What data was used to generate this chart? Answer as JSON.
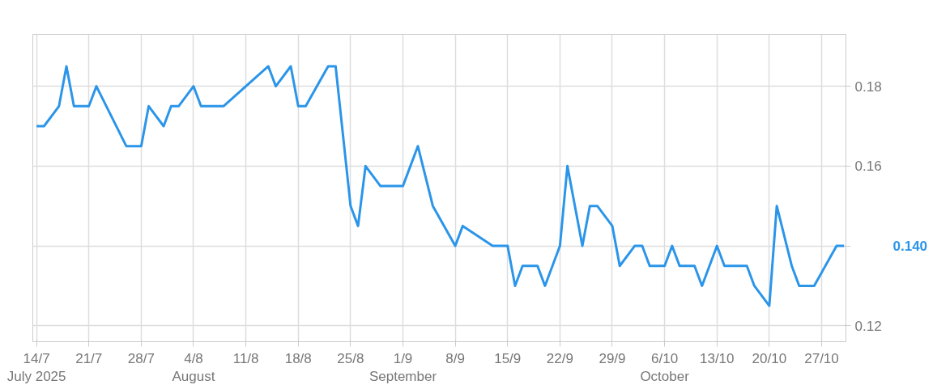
{
  "chart_data": {
    "type": "line",
    "x": [
      "2025-07-14",
      "2025-07-15",
      "2025-07-17",
      "2025-07-18",
      "2025-07-19",
      "2025-07-21",
      "2025-07-22",
      "2025-07-26",
      "2025-07-28",
      "2025-07-29",
      "2025-07-31",
      "2025-08-01",
      "2025-08-02",
      "2025-08-04",
      "2025-08-05",
      "2025-08-08",
      "2025-08-14",
      "2025-08-15",
      "2025-08-17",
      "2025-08-18",
      "2025-08-19",
      "2025-08-22",
      "2025-08-23",
      "2025-08-25",
      "2025-08-26",
      "2025-08-27",
      "2025-08-29",
      "2025-09-01",
      "2025-09-02",
      "2025-09-03",
      "2025-09-05",
      "2025-09-08",
      "2025-09-09",
      "2025-09-13",
      "2025-09-15",
      "2025-09-16",
      "2025-09-17",
      "2025-09-19",
      "2025-09-20",
      "2025-09-22",
      "2025-09-23",
      "2025-09-25",
      "2025-09-26",
      "2025-09-27",
      "2025-09-29",
      "2025-09-30",
      "2025-10-02",
      "2025-10-03",
      "2025-10-04",
      "2025-10-06",
      "2025-10-07",
      "2025-10-08",
      "2025-10-10",
      "2025-10-11",
      "2025-10-13",
      "2025-10-14",
      "2025-10-17",
      "2025-10-18",
      "2025-10-20",
      "2025-10-21",
      "2025-10-23",
      "2025-10-24",
      "2025-10-26",
      "2025-10-29",
      "2025-10-30"
    ],
    "series": [
      {
        "color": "#2b95e9",
        "values": [
          0.17,
          0.17,
          0.175,
          0.185,
          0.175,
          0.175,
          0.18,
          0.165,
          0.165,
          0.175,
          0.17,
          0.175,
          0.175,
          0.18,
          0.175,
          0.175,
          0.185,
          0.18,
          0.185,
          0.175,
          0.175,
          0.185,
          0.185,
          0.15,
          0.145,
          0.16,
          0.155,
          0.155,
          0.16,
          0.165,
          0.15,
          0.14,
          0.145,
          0.14,
          0.14,
          0.13,
          0.135,
          0.135,
          0.13,
          0.14,
          0.16,
          0.14,
          0.15,
          0.15,
          0.145,
          0.135,
          0.14,
          0.14,
          0.135,
          0.135,
          0.14,
          0.135,
          0.135,
          0.13,
          0.14,
          0.135,
          0.135,
          0.13,
          0.125,
          0.15,
          0.135,
          0.13,
          0.13,
          0.14,
          0.14
        ]
      }
    ],
    "xlim": [
      "2025-07-13T12:00",
      "2025-10-30T06:00"
    ],
    "xticks": [
      {
        "value": "2025-07-14",
        "label": "14/7\nJuly 2025"
      },
      {
        "value": "2025-07-21",
        "label": "21/7"
      },
      {
        "value": "2025-07-28",
        "label": "28/7"
      },
      {
        "value": "2025-08-04",
        "label": "4/8\nAugust"
      },
      {
        "value": "2025-08-11",
        "label": "11/8"
      },
      {
        "value": "2025-08-18",
        "label": "18/8"
      },
      {
        "value": "2025-08-25",
        "label": "25/8"
      },
      {
        "value": "2025-09-01",
        "label": "1/9\nSeptember"
      },
      {
        "value": "2025-09-08",
        "label": "8/9"
      },
      {
        "value": "2025-09-15",
        "label": "15/9"
      },
      {
        "value": "2025-09-22",
        "label": "22/9"
      },
      {
        "value": "2025-09-29",
        "label": "29/9"
      },
      {
        "value": "2025-10-06",
        "label": "6/10\nOctober"
      },
      {
        "value": "2025-10-13",
        "label": "13/10"
      },
      {
        "value": "2025-10-20",
        "label": "20/10"
      },
      {
        "value": "2025-10-27",
        "label": "27/10"
      }
    ],
    "ylim": [
      0.116,
      0.193
    ],
    "yticks": [
      0.12,
      {
        "value": 0.14,
        "label": null
      },
      0.16,
      0.18
    ],
    "value_labels": [
      null,
      null,
      null,
      null,
      null,
      null,
      null,
      null,
      null,
      null,
      null,
      null,
      null,
      null,
      null,
      null,
      null,
      null,
      null,
      null,
      null,
      null,
      null,
      null,
      null,
      null,
      null,
      null,
      null,
      null,
      null,
      null,
      null,
      null,
      null,
      null,
      null,
      null,
      null,
      null,
      null,
      null,
      null,
      null,
      null,
      null,
      null,
      null,
      null,
      null,
      null,
      null,
      null,
      null,
      null,
      null,
      null,
      null,
      null,
      null,
      null,
      null,
      null,
      null,
      "0.140"
    ],
    "grid": true,
    "marker": "none",
    "line_style": "solid"
  }
}
